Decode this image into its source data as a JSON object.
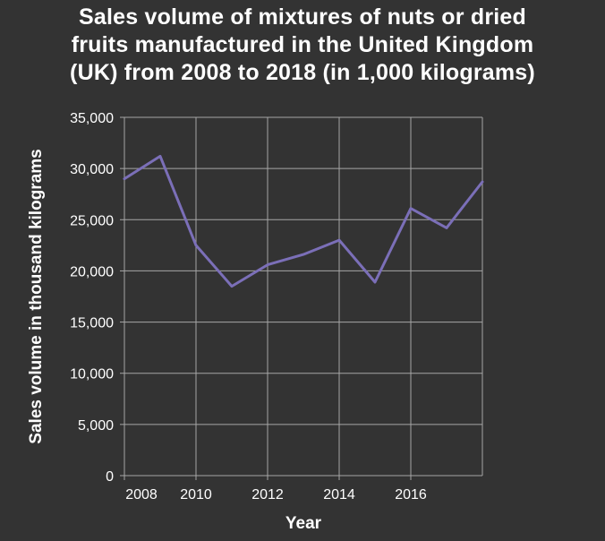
{
  "chart_data": {
    "type": "line",
    "title_lines": [
      "Sales volume of mixtures of nuts or dried",
      "fruits manufactured in the United Kingdom",
      "(UK) from 2008 to 2018 (in 1,000 kilograms)"
    ],
    "xlabel": "Year",
    "ylabel": "Sales volume in thousand kilograms",
    "xlim": [
      2008,
      2018
    ],
    "ylim": [
      0,
      35000
    ],
    "x_ticks": [
      2008,
      2010,
      2012,
      2014,
      2016
    ],
    "x_tick_labels": [
      "2008",
      "2010",
      "2012",
      "2014",
      "2016"
    ],
    "y_ticks": [
      0,
      5000,
      10000,
      15000,
      20000,
      25000,
      30000,
      35000
    ],
    "y_tick_labels": [
      "0",
      "5,000",
      "10,000",
      "15,000",
      "20,000",
      "25,000",
      "30,000",
      "35,000"
    ],
    "grid": true,
    "series": [
      {
        "x": [
          2008,
          2009,
          2010,
          2011,
          2012,
          2013,
          2014,
          2015,
          2016,
          2017,
          2018
        ],
        "values": [
          29000,
          31200,
          22500,
          18500,
          20600,
          21600,
          23000,
          18900,
          26100,
          24200,
          28700
        ]
      }
    ],
    "colors": {
      "background": "#333333",
      "grid": "#a6a6a6",
      "line": "#7b6fb8",
      "text": "#ffffff"
    }
  }
}
